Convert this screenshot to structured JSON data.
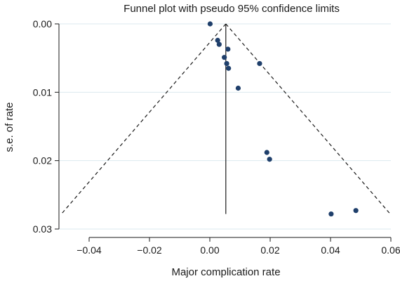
{
  "chart_data": {
    "type": "scatter",
    "title": "Funnel plot with pseudo 95% confidence limits",
    "xlabel": "Major complication rate",
    "ylabel": "s.e. of rate",
    "xlim": [
      -0.05,
      0.06
    ],
    "ylim": [
      0,
      0.03
    ],
    "y_reversed": true,
    "grid": true,
    "legend": "none",
    "x_ticks": [
      {
        "value": -0.04,
        "label": "−0.04"
      },
      {
        "value": -0.02,
        "label": "−0.02"
      },
      {
        "value": 0.0,
        "label": "0.00"
      },
      {
        "value": 0.02,
        "label": "0.02"
      },
      {
        "value": 0.04,
        "label": "0.04"
      },
      {
        "value": 0.06,
        "label": "0.06"
      }
    ],
    "y_ticks": [
      {
        "value": 0.0,
        "label": "0.00"
      },
      {
        "value": 0.01,
        "label": "0.01"
      },
      {
        "value": 0.02,
        "label": "0.02"
      },
      {
        "value": 0.03,
        "label": "0.03"
      }
    ],
    "pooled_estimate": 0.0053,
    "pseudo_ci_max_se": 0.0278,
    "points": [
      {
        "x": 0.0001,
        "y": 0.0
      },
      {
        "x": 0.0026,
        "y": 0.0024
      },
      {
        "x": 0.0031,
        "y": 0.003
      },
      {
        "x": 0.006,
        "y": 0.0037
      },
      {
        "x": 0.0048,
        "y": 0.0049
      },
      {
        "x": 0.0056,
        "y": 0.0058
      },
      {
        "x": 0.0062,
        "y": 0.0065
      },
      {
        "x": 0.0165,
        "y": 0.0058
      },
      {
        "x": 0.0094,
        "y": 0.0094
      },
      {
        "x": 0.0189,
        "y": 0.0188
      },
      {
        "x": 0.0198,
        "y": 0.0198
      },
      {
        "x": 0.0484,
        "y": 0.0273
      },
      {
        "x": 0.0402,
        "y": 0.0278
      }
    ],
    "colors": {
      "points": "#1f3f6b",
      "lines": "#1a1a1a",
      "grid": "#dbe9ef"
    }
  }
}
